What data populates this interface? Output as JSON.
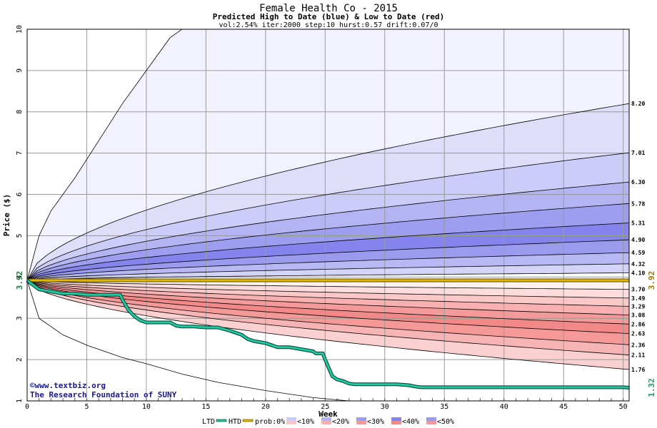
{
  "chart_data": {
    "type": "area",
    "title": "Female Health Co - 2015",
    "subtitle": "Predicted High to Date (blue) &  Low to Date (red)",
    "params": "vol:2.54% iter:2000 step:10 hurst:0.57 drift:0.07/0",
    "xlabel": "Week",
    "ylabel": "Price ($)",
    "xlim": [
      0,
      50.5
    ],
    "ylim": [
      1,
      10
    ],
    "xticks": [
      "0",
      "5",
      "10",
      "15",
      "20",
      "25",
      "30",
      "35",
      "40",
      "45",
      "50"
    ],
    "yticks": [
      "1",
      "2",
      "3",
      "4",
      "5",
      "6",
      "7",
      "8",
      "9",
      "10"
    ],
    "grid": true,
    "start_price": 3.92,
    "start_price_label": "3.92",
    "reference_price": 3.92,
    "reference_price_label": "3.92",
    "current_price": 1.32,
    "current_price_label": "1.32",
    "high_percentile_curves": [
      {
        "end_label": "8.20",
        "end": 8.2
      },
      {
        "end_label": "7.01",
        "end": 7.01
      },
      {
        "end_label": "6.30",
        "end": 6.3
      },
      {
        "end_label": "5.78",
        "end": 5.78
      },
      {
        "end_label": "5.31",
        "end": 5.31
      },
      {
        "end_label": "4.90",
        "end": 4.9
      },
      {
        "end_label": "4.59",
        "end": 4.59
      },
      {
        "end_label": "4.32",
        "end": 4.32
      },
      {
        "end_label": "4.10",
        "end": 4.1
      }
    ],
    "outer_high_curve": {
      "x": [
        0,
        1,
        2,
        4,
        6,
        8,
        10,
        12,
        13,
        14,
        15
      ],
      "y": [
        3.92,
        5.0,
        5.6,
        6.4,
        7.3,
        8.2,
        9.0,
        9.8,
        10.0,
        10.0,
        10.0
      ]
    },
    "low_percentile_curves": [
      {
        "end_label": "3.70",
        "end": 3.7
      },
      {
        "end_label": "3.49",
        "end": 3.49
      },
      {
        "end_label": "3.29",
        "end": 3.29
      },
      {
        "end_label": "3.08",
        "end": 3.08
      },
      {
        "end_label": "2.86",
        "end": 2.86
      },
      {
        "end_label": "2.63",
        "end": 2.63
      },
      {
        "end_label": "2.36",
        "end": 2.36
      },
      {
        "end_label": "2.11",
        "end": 2.11
      },
      {
        "end_label": "1.76",
        "end": 1.76
      }
    ],
    "outer_low_curve": {
      "x": [
        0,
        1,
        3,
        5,
        8,
        10,
        13,
        16,
        20,
        24,
        27
      ],
      "y": [
        3.92,
        3.0,
        2.6,
        2.35,
        2.05,
        1.9,
        1.65,
        1.45,
        1.25,
        1.08,
        1.0
      ]
    },
    "series": [
      {
        "name": "HTD",
        "color": "#e0b800",
        "x": [
          0,
          50.5
        ],
        "y": [
          3.92,
          3.92
        ]
      },
      {
        "name": "LTD",
        "color": "#20c8a0",
        "x": [
          0,
          1,
          2,
          3,
          4,
          5,
          6,
          7,
          7.8,
          8,
          8.5,
          9,
          9.5,
          10,
          11,
          12,
          12.5,
          13,
          14,
          15,
          16,
          17,
          17.5,
          18,
          18.5,
          19,
          20,
          21,
          22,
          23,
          24,
          24.2,
          24.8,
          25,
          25.3,
          25.6,
          26,
          26.5,
          27,
          27.5,
          28,
          29,
          30,
          31,
          32,
          32.5,
          33,
          34,
          35,
          36,
          37,
          38,
          39,
          40,
          41,
          42,
          43,
          44,
          45,
          46,
          47,
          48,
          49,
          50,
          50.5
        ],
        "y": [
          3.92,
          3.7,
          3.65,
          3.6,
          3.6,
          3.57,
          3.57,
          3.57,
          3.57,
          3.45,
          3.2,
          3.05,
          2.95,
          2.9,
          2.9,
          2.9,
          2.82,
          2.8,
          2.8,
          2.78,
          2.78,
          2.7,
          2.65,
          2.6,
          2.5,
          2.45,
          2.4,
          2.3,
          2.3,
          2.25,
          2.2,
          2.15,
          2.15,
          2.0,
          1.8,
          1.6,
          1.52,
          1.48,
          1.42,
          1.4,
          1.4,
          1.4,
          1.4,
          1.4,
          1.38,
          1.35,
          1.33,
          1.33,
          1.33,
          1.33,
          1.33,
          1.33,
          1.33,
          1.33,
          1.33,
          1.33,
          1.33,
          1.33,
          1.33,
          1.33,
          1.33,
          1.33,
          1.33,
          1.33,
          1.32
        ]
      }
    ],
    "colors": {
      "blue_bands": [
        "#f2f2ff",
        "#dedefb",
        "#ccccf8",
        "#b4b4f3",
        "#9e9ef0",
        "#8484ec",
        "#9a9aef",
        "#b8b8f4",
        "#d4d4f9"
      ],
      "red_bands": [
        "#fdf1f1",
        "#fcdcdc",
        "#fbc8c8",
        "#f8b0b0",
        "#f59a9a",
        "#f38888",
        "#f49898",
        "#f7b4b4",
        "#fad0d0"
      ],
      "grid": "#9a9a9a",
      "ltd": "#20c8a0",
      "htd": "#e0b800",
      "start_label": "#1e7a3e",
      "ref_label": "#9a7a00",
      "current_label": "#1e9a5e"
    },
    "legend": {
      "ltd_label": "LTD",
      "htd_label": "HTD",
      "prob_label": "prob:0%",
      "steps": [
        "<10%",
        "<20%",
        "<30%",
        "<40%",
        "<50%"
      ],
      "placement": "bottom"
    },
    "credits": {
      "line1": "©www.textbiz.org",
      "line2": "The Research Foundation of SUNY"
    }
  }
}
